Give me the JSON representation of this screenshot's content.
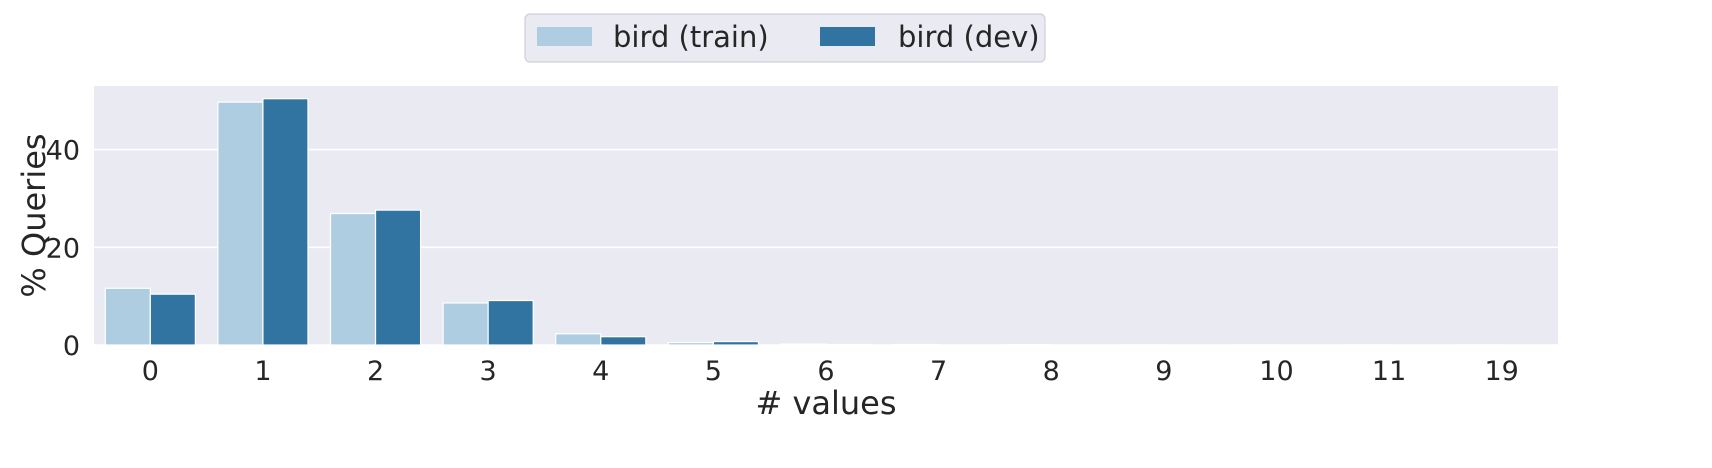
{
  "chart_data": {
    "type": "bar",
    "title": "",
    "xlabel": "# values",
    "ylabel": "% Queries",
    "categories": [
      "0",
      "1",
      "2",
      "3",
      "4",
      "5",
      "6",
      "7",
      "8",
      "9",
      "10",
      "11",
      "19"
    ],
    "series": [
      {
        "name": "bird (train)",
        "color": "#aecde1",
        "values": [
          11.6,
          49.7,
          26.9,
          8.6,
          2.3,
          0.5,
          0.2,
          0.1,
          0.05,
          0.03,
          0.02,
          0.01,
          0.01
        ]
      },
      {
        "name": "bird (dev)",
        "color": "#3274a1",
        "values": [
          10.4,
          50.4,
          27.6,
          9.1,
          1.7,
          0.7,
          0.1,
          0.0,
          0.0,
          0.0,
          0.0,
          0.0,
          0.0
        ]
      }
    ],
    "ylim": [
      0,
      53
    ],
    "yticks": [
      "0",
      "20",
      "40"
    ],
    "grid": true,
    "legend_position": "top-center",
    "background_color": "#eaeaf2",
    "grid_color": "#ffffff"
  }
}
